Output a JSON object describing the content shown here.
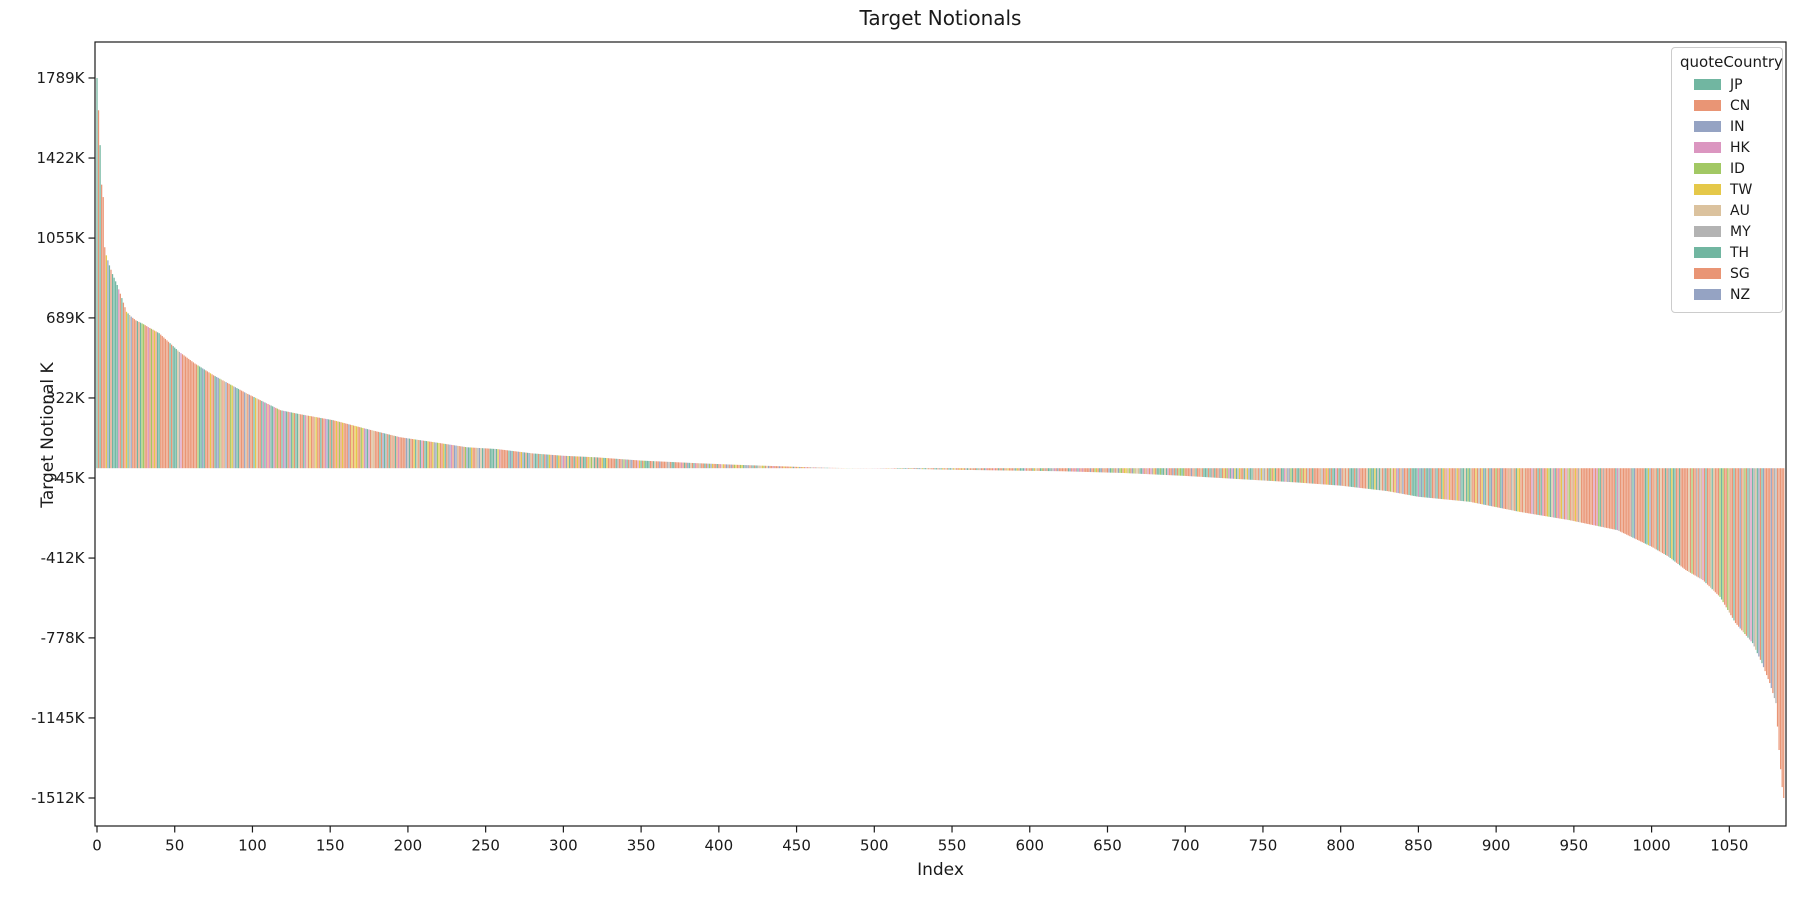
{
  "figure": {
    "background": "#ffffff",
    "spine_color": "#1a1a1a",
    "tick_color": "#1a1a1a"
  },
  "chart_data": {
    "type": "bar",
    "title": "Target Notionals",
    "xlabel": "Index",
    "ylabel": "Target Notional K",
    "n_bars": 1086,
    "xlim": [
      -5.0,
      1086.5
    ],
    "ylim_k": [
      -1640,
      1954
    ],
    "grid": false,
    "bar_value_unit": "K",
    "yticks": [
      {
        "label": "1789K",
        "value": 1789
      },
      {
        "label": "1422K",
        "value": 1422
      },
      {
        "label": "1055K",
        "value": 1055
      },
      {
        "label": "689K",
        "value": 689
      },
      {
        "label": "322K",
        "value": 322
      },
      {
        "label": "-45K",
        "value": -45
      },
      {
        "label": "-412K",
        "value": -412
      },
      {
        "label": "-778K",
        "value": -778
      },
      {
        "label": "-1145K",
        "value": -1145
      },
      {
        "label": "-1512K",
        "value": -1512
      }
    ],
    "xticks": [
      0,
      50,
      100,
      150,
      200,
      250,
      300,
      350,
      400,
      450,
      500,
      550,
      600,
      650,
      700,
      750,
      800,
      850,
      900,
      950,
      1000,
      1050
    ],
    "envelope_points_index_value_k": [
      [
        0,
        1789
      ],
      [
        1,
        1641
      ],
      [
        2,
        1481
      ],
      [
        3,
        1300
      ],
      [
        4,
        1243
      ],
      [
        5,
        1013
      ],
      [
        6,
        976
      ],
      [
        8,
        930
      ],
      [
        10,
        890
      ],
      [
        13,
        840
      ],
      [
        16,
        780
      ],
      [
        19,
        717
      ],
      [
        22,
        695
      ],
      [
        25,
        678
      ],
      [
        30,
        660
      ],
      [
        33,
        647
      ],
      [
        40,
        619
      ],
      [
        47,
        573
      ],
      [
        53,
        533
      ],
      [
        63,
        480
      ],
      [
        75,
        426
      ],
      [
        96,
        344
      ],
      [
        118,
        266
      ],
      [
        131,
        247
      ],
      [
        152,
        220
      ],
      [
        174,
        179
      ],
      [
        195,
        142
      ],
      [
        217,
        119
      ],
      [
        238,
        96
      ],
      [
        257,
        88
      ],
      [
        280,
        68
      ],
      [
        300,
        57
      ],
      [
        321,
        50
      ],
      [
        350,
        35
      ],
      [
        386,
        23
      ],
      [
        410,
        16
      ],
      [
        439,
        9
      ],
      [
        455,
        5
      ],
      [
        470,
        2
      ],
      [
        487,
        0
      ],
      [
        503,
        -1
      ],
      [
        520,
        -3
      ],
      [
        560,
        -8
      ],
      [
        600,
        -12
      ],
      [
        621,
        -14
      ],
      [
        660,
        -22
      ],
      [
        699,
        -35
      ],
      [
        730,
        -48
      ],
      [
        771,
        -65
      ],
      [
        800,
        -80
      ],
      [
        830,
        -105
      ],
      [
        850,
        -131
      ],
      [
        883,
        -154
      ],
      [
        915,
        -200
      ],
      [
        947,
        -238
      ],
      [
        978,
        -284
      ],
      [
        1000,
        -360
      ],
      [
        1011,
        -406
      ],
      [
        1022,
        -467
      ],
      [
        1033,
        -513
      ],
      [
        1044,
        -590
      ],
      [
        1054,
        -710
      ],
      [
        1065,
        -802
      ],
      [
        1071,
        -894
      ],
      [
        1076,
        -985
      ],
      [
        1080,
        -1077
      ],
      [
        1082,
        -1292
      ],
      [
        1083,
        -1380
      ],
      [
        1084,
        -1462
      ],
      [
        1085,
        -1512
      ]
    ],
    "zero_crossing_index": 487,
    "max_value_k": 1789,
    "min_value_k": -1512,
    "legend": {
      "title": "quoteCountry",
      "entries": [
        {
          "label": "JP",
          "color": "#71b6a1"
        },
        {
          "label": "CN",
          "color": "#e99575"
        },
        {
          "label": "IN",
          "color": "#95a3c3"
        },
        {
          "label": "HK",
          "color": "#db96c0"
        },
        {
          "label": "ID",
          "color": "#a2c864"
        },
        {
          "label": "TW",
          "color": "#e5c849"
        },
        {
          "label": "AU",
          "color": "#dbc29e"
        },
        {
          "label": "MY",
          "color": "#b3b3b3"
        },
        {
          "label": "TH",
          "color": "#71b6a1"
        },
        {
          "label": "SG",
          "color": "#e99575"
        },
        {
          "label": "NZ",
          "color": "#95a3c3"
        }
      ]
    },
    "bar_color_weights": [
      {
        "color": "#e99575",
        "weight": 0.4
      },
      {
        "color": "#71b6a1",
        "weight": 0.19
      },
      {
        "color": "#95a3c3",
        "weight": 0.07
      },
      {
        "color": "#db96c0",
        "weight": 0.06
      },
      {
        "color": "#a2c864",
        "weight": 0.06
      },
      {
        "color": "#e5c849",
        "weight": 0.07
      },
      {
        "color": "#dbc29e",
        "weight": 0.08
      },
      {
        "color": "#b3b3b3",
        "weight": 0.07
      }
    ],
    "color_overrides": {
      "0": "#71b6a1",
      "1": "#e99575",
      "2": "#71b6a1",
      "3": "#e99575",
      "1082": "#e99575",
      "1083": "#e99575",
      "1084": "#e99575",
      "1085": "#e99575"
    }
  }
}
